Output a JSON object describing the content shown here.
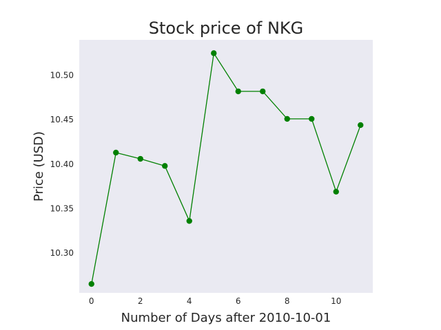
{
  "chart_data": {
    "type": "line",
    "title": "Stock price of NKG",
    "xlabel": "Number of Days after 2010-10-01",
    "ylabel": "Price (USD)",
    "xlim": [
      -0.5,
      11.5
    ],
    "ylim": [
      10.255,
      10.54
    ],
    "xticks": [
      0,
      2,
      4,
      6,
      8,
      10
    ],
    "yticks": [
      10.3,
      10.35,
      10.4,
      10.45,
      10.5
    ],
    "ytick_labels": [
      "10.30",
      "10.35",
      "10.40",
      "10.45",
      "10.50"
    ],
    "grid": false,
    "plot_background": "#eaeaf2",
    "series": [
      {
        "color": "#008000",
        "marker": "circle",
        "x": [
          0,
          1,
          2,
          3,
          4,
          5,
          6,
          7,
          8,
          9,
          10,
          11
        ],
        "y": [
          10.265,
          10.413,
          10.406,
          10.398,
          10.336,
          10.525,
          10.482,
          10.482,
          10.451,
          10.451,
          10.369,
          10.444
        ]
      }
    ]
  }
}
